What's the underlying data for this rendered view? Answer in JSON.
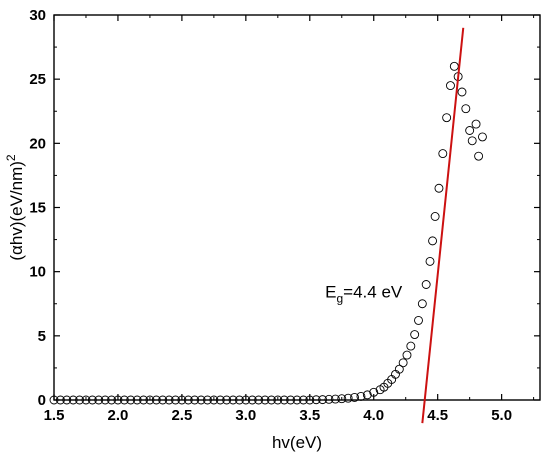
{
  "chart_data": {
    "type": "scatter",
    "title": "",
    "xlabel": "hv(eV)",
    "ylabel": "(αhv)(eV/nm)",
    "ylabel_superscript": "2",
    "xlim": [
      1.5,
      5.3
    ],
    "ylim": [
      0,
      30
    ],
    "x_ticks": [
      1.5,
      2.0,
      2.5,
      3.0,
      3.5,
      4.0,
      4.5,
      5.0
    ],
    "x_tick_labels": [
      "1.5",
      "2.0",
      "2.5",
      "3.0",
      "3.5",
      "4.0",
      "4.5",
      "5.0"
    ],
    "y_ticks": [
      0,
      5,
      10,
      15,
      20,
      25,
      30
    ],
    "y_tick_labels": [
      "0",
      "5",
      "10",
      "15",
      "20",
      "25",
      "30"
    ],
    "grid": false,
    "legend": "none",
    "series": [
      {
        "marker": "open-circle",
        "color": "#000000",
        "x": [
          1.5,
          1.55,
          1.6,
          1.65,
          1.7,
          1.75,
          1.8,
          1.85,
          1.9,
          1.95,
          2.0,
          2.05,
          2.1,
          2.15,
          2.2,
          2.25,
          2.3,
          2.35,
          2.4,
          2.45,
          2.5,
          2.55,
          2.6,
          2.65,
          2.7,
          2.75,
          2.8,
          2.85,
          2.9,
          2.95,
          3.0,
          3.05,
          3.1,
          3.15,
          3.2,
          3.25,
          3.3,
          3.35,
          3.4,
          3.45,
          3.5,
          3.55,
          3.6,
          3.65,
          3.7,
          3.75,
          3.8,
          3.85,
          3.9,
          3.95,
          4.0,
          4.05,
          4.08,
          4.11,
          4.14,
          4.17,
          4.2,
          4.23,
          4.26,
          4.29,
          4.32,
          4.35,
          4.38,
          4.41,
          4.44,
          4.46,
          4.48,
          4.51,
          4.54,
          4.57,
          4.6,
          4.63,
          4.66,
          4.69,
          4.72,
          4.75,
          4.77,
          4.8,
          4.82,
          4.85
        ],
        "y": [
          0.0,
          0.0,
          0.0,
          0.0,
          0.0,
          0.0,
          0.0,
          0.0,
          0.0,
          0.0,
          0.0,
          0.0,
          0.0,
          0.0,
          0.0,
          0.0,
          0.0,
          0.0,
          0.0,
          0.0,
          0.0,
          0.0,
          0.0,
          0.0,
          0.0,
          0.0,
          0.0,
          0.0,
          0.0,
          0.0,
          0.0,
          0.0,
          0.0,
          0.0,
          0.0,
          0.0,
          0.0,
          0.0,
          0.0,
          0.0,
          0.0,
          0.02,
          0.03,
          0.05,
          0.07,
          0.1,
          0.14,
          0.2,
          0.28,
          0.4,
          0.6,
          0.8,
          1.0,
          1.3,
          1.6,
          2.0,
          2.4,
          2.9,
          3.5,
          4.2,
          5.1,
          6.2,
          7.5,
          9.0,
          10.8,
          12.4,
          14.3,
          16.5,
          19.2,
          22.0,
          24.5,
          26.0,
          25.2,
          24.0,
          22.7,
          21.0,
          20.2,
          21.5,
          19.0,
          20.5
        ]
      }
    ],
    "fit_line": {
      "color": "#cc1111",
      "x": [
        4.38,
        4.7
      ],
      "y": [
        -1.8,
        29.0
      ]
    },
    "annotation": {
      "text": "E",
      "subscript": "g",
      "rest": "=4.4 eV",
      "x": 3.62,
      "y": 8.0
    }
  }
}
